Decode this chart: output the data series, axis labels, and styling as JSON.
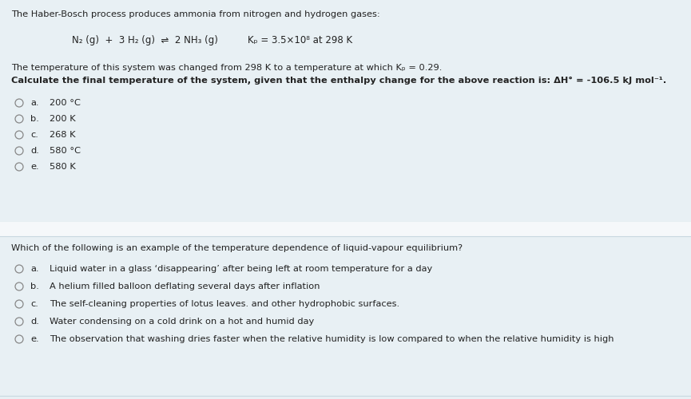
{
  "background_color": "#e8f0f4",
  "separator_bg": "#f5f8fa",
  "separator_line_color": "#c8d8e0",
  "text_color": "#222222",
  "circle_color": "#888888",
  "title1": "The Haber-Bosch process produces ammonia from nitrogen and hydrogen gases:",
  "eq_part1": "N₂ (g)  +  3 H₂ (g)  ⇌  2 NH₃ (g)",
  "eq_part2": "Kₚ = 3.5×10⁸ at 298 K",
  "para1": "The temperature of this system was changed from 298 K to a temperature at which Kₚ = 0.29.",
  "para2": "Calculate the final temperature of the system, given that the enthalpy change for the above reaction is: ΔH° = -106.5 kJ mol⁻¹.",
  "q1_options": [
    {
      "label": "a.",
      "text": "200 °C"
    },
    {
      "label": "b.",
      "text": "200 K"
    },
    {
      "label": "c.",
      "text": "268 K"
    },
    {
      "label": "d.",
      "text": "580 °C"
    },
    {
      "label": "e.",
      "text": "580 K"
    }
  ],
  "title2": "Which of the following is an example of the temperature dependence of liquid-vapour equilibrium?",
  "q2_options": [
    {
      "label": "a.",
      "text": "Liquid water in a glass ‘disappearing’ after being left at room temperature for a day"
    },
    {
      "label": "b.",
      "text": "A helium filled balloon deflating several days after inflation"
    },
    {
      "label": "c.",
      "text": "The self-cleaning properties of lotus leaves. and other hydrophobic surfaces."
    },
    {
      "label": "d.",
      "text": "Water condensing on a cold drink on a hot and humid day"
    },
    {
      "label": "e.",
      "text": "The observation that washing dries faster when the relative humidity is low compared to when the relative humidity is high"
    }
  ],
  "fig_width": 8.65,
  "fig_height": 5.0,
  "dpi": 100
}
